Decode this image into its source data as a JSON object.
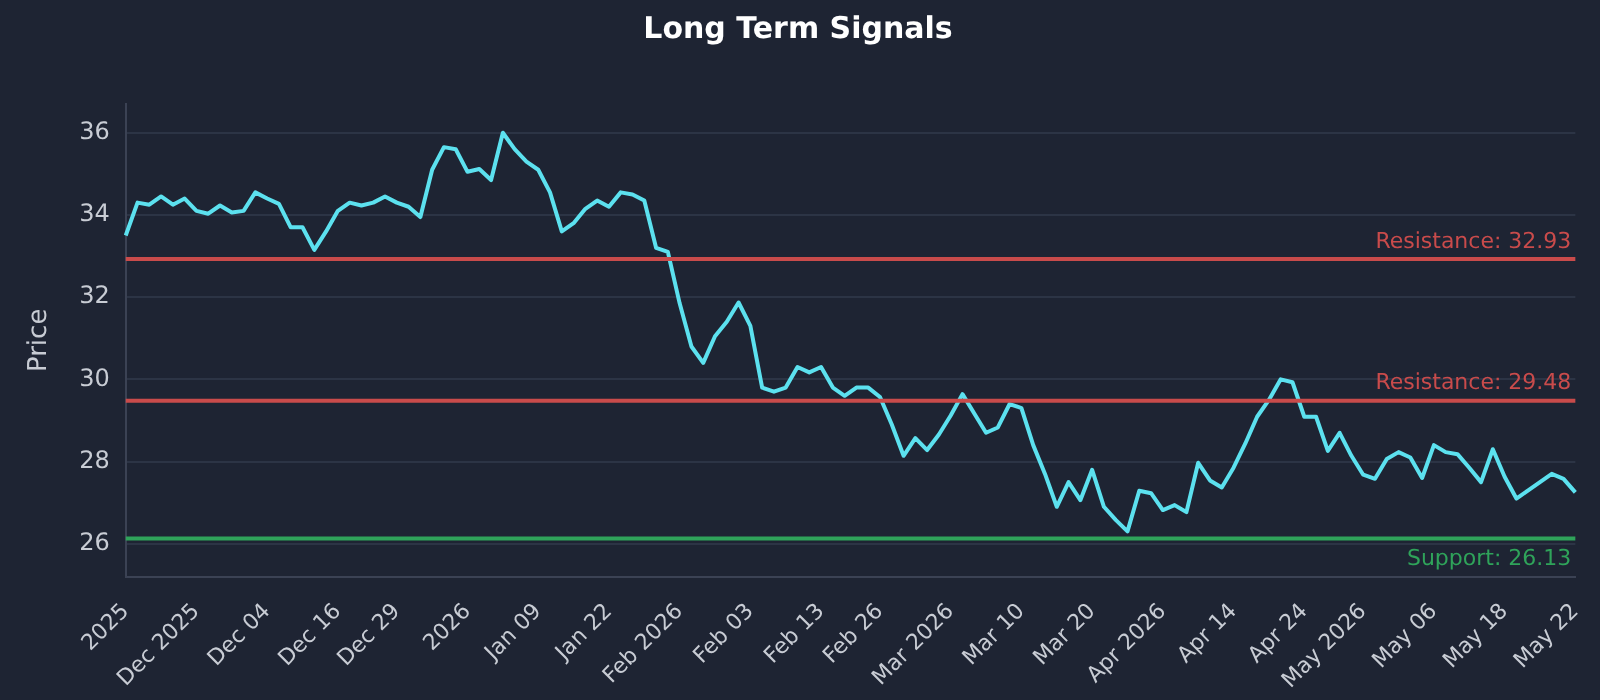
{
  "chart_data": {
    "type": "line",
    "title": "Long Term Signals",
    "ylabel": "Price",
    "categories": [
      "2025",
      null,
      null,
      null,
      null,
      null,
      "Dec 2025",
      null,
      null,
      null,
      null,
      null,
      "Dec 04",
      null,
      null,
      null,
      null,
      null,
      "Dec 16",
      null,
      null,
      null,
      null,
      "Dec 29",
      null,
      null,
      null,
      null,
      null,
      "2026",
      null,
      null,
      null,
      null,
      null,
      "Jan 09",
      null,
      null,
      null,
      null,
      null,
      "Jan 22",
      null,
      null,
      null,
      null,
      null,
      "Feb 2026",
      null,
      null,
      null,
      null,
      null,
      "Feb 03",
      null,
      null,
      null,
      null,
      null,
      "Feb 13",
      null,
      null,
      null,
      null,
      "Feb 26",
      null,
      null,
      null,
      null,
      null,
      "Mar 2026",
      null,
      null,
      null,
      null,
      null,
      "Mar 10",
      null,
      null,
      null,
      null,
      null,
      "Mar 20",
      null,
      null,
      null,
      null,
      null,
      "Apr 2026",
      null,
      null,
      null,
      null,
      null,
      "Apr 14",
      null,
      null,
      null,
      null,
      null,
      "Apr 24",
      null,
      null,
      null,
      null,
      "May 2026",
      null,
      null,
      null,
      null,
      null,
      "May 06",
      null,
      null,
      null,
      null,
      null,
      "May 18",
      null,
      null,
      null,
      null,
      null,
      "May 22"
    ],
    "series": [
      {
        "color": "#5ce1ef",
        "values": [
          33.5,
          34.3,
          34.25,
          34.45,
          34.25,
          34.4,
          34.1,
          34.03,
          34.23,
          34.06,
          34.1,
          34.55,
          34.4,
          34.27,
          33.7,
          33.7,
          33.15,
          33.6,
          34.1,
          34.3,
          34.23,
          34.3,
          34.45,
          34.3,
          34.2,
          33.95,
          35.1,
          35.65,
          35.6,
          35.05,
          35.12,
          34.85,
          36.0,
          35.6,
          35.3,
          35.1,
          34.55,
          33.6,
          33.8,
          34.15,
          34.35,
          34.2,
          34.55,
          34.5,
          34.35,
          33.2,
          33.1,
          31.85,
          30.8,
          30.4,
          31.05,
          31.4,
          31.87,
          31.3,
          29.8,
          29.7,
          29.8,
          30.3,
          30.17,
          30.3,
          29.8,
          29.6,
          29.8,
          29.8,
          29.57,
          28.9,
          28.14,
          28.57,
          28.28,
          28.66,
          29.12,
          29.64,
          29.17,
          28.7,
          28.83,
          29.4,
          29.3,
          28.4,
          27.7,
          26.9,
          27.5,
          27.06,
          27.8,
          26.9,
          26.58,
          26.3,
          27.29,
          27.23,
          26.82,
          26.94,
          26.77,
          27.97,
          27.54,
          27.37,
          27.85,
          28.44,
          29.09,
          29.5,
          30.0,
          29.93,
          29.09,
          29.09,
          28.26,
          28.7,
          28.14,
          27.68,
          27.58,
          28.06,
          28.23,
          28.1,
          27.6,
          28.4,
          28.23,
          28.18,
          27.85,
          27.5,
          28.3,
          27.63,
          27.1,
          27.3,
          27.5,
          27.7,
          27.58,
          27.25
        ]
      }
    ],
    "ylim": [
      25.2,
      36.7
    ],
    "yticks": [
      26,
      28,
      30,
      32,
      34,
      36
    ],
    "grid": "y",
    "legend": false,
    "marker": "none",
    "line_style": "solid",
    "ref_lines": [
      {
        "axis": "y",
        "value": 32.93,
        "label": "Resistance: 32.93",
        "color": "#c94b4b"
      },
      {
        "axis": "y",
        "value": 29.48,
        "label": "Resistance: 29.48",
        "color": "#c94b4b"
      },
      {
        "axis": "y",
        "value": 26.13,
        "label": "Support: 26.13",
        "color": "#2fa35a"
      }
    ]
  }
}
